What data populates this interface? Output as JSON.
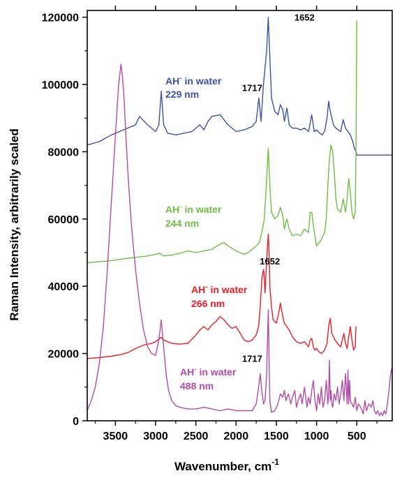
{
  "chart_data": {
    "type": "line",
    "xlabel": "Wavenumber, cm",
    "xlabel_superscript": "-1",
    "ylabel": "Raman Intensity, arbitrarily  scaled",
    "xlim": [
      3850,
      60
    ],
    "ylim": [
      0,
      122000
    ],
    "x_reversed": true,
    "x_ticks": [
      "3500",
      "3000",
      "2500",
      "2000",
      "1500",
      "1000",
      "500"
    ],
    "x_tick_values": [
      3500,
      3000,
      2500,
      2000,
      1500,
      1000,
      500
    ],
    "y_ticks": [
      "0",
      "20000",
      "40000",
      "60000",
      "80000",
      "100000",
      "120000"
    ],
    "y_tick_values": [
      0,
      20000,
      40000,
      60000,
      80000,
      100000,
      120000
    ],
    "series": [
      {
        "color": "#3953a4",
        "label_line1": "AH",
        "label_sup": "-",
        "label_rest": " in water",
        "label_line2": "229 nm",
        "x": [
          3850,
          3700,
          3550,
          3450,
          3350,
          3250,
          3200,
          3100,
          3000,
          2960,
          2930,
          2900,
          2850,
          2750,
          2650,
          2550,
          2450,
          2400,
          2350,
          2300,
          2200,
          2100,
          2000,
          1900,
          1800,
          1750,
          1717,
          1690,
          1660,
          1620,
          1600,
          1580,
          1560,
          1520,
          1480,
          1450,
          1420,
          1400,
          1370,
          1340,
          1300,
          1250,
          1200,
          1150,
          1100,
          1060,
          1030,
          1000,
          960,
          930,
          900,
          870,
          850,
          830,
          810,
          790,
          760,
          730,
          700,
          670,
          640,
          610,
          580,
          550,
          530,
          510,
          500,
          450,
          300,
          150,
          60
        ],
        "y": [
          82000,
          83000,
          85000,
          86000,
          87000,
          88000,
          90500,
          88000,
          86000,
          88000,
          98000,
          88000,
          85500,
          85000,
          85500,
          86000,
          88000,
          86500,
          89000,
          90500,
          91000,
          88000,
          86000,
          86500,
          87500,
          89000,
          96000,
          89000,
          100000,
          110000,
          120000,
          108000,
          96000,
          92000,
          91000,
          94000,
          92500,
          89000,
          93000,
          88000,
          87000,
          87000,
          86500,
          87000,
          86000,
          91000,
          86000,
          86500,
          85500,
          85000,
          86000,
          90000,
          95000,
          92000,
          90000,
          88000,
          87000,
          86500,
          86000,
          89500,
          87000,
          86000,
          85000,
          83000,
          81000,
          80000,
          79000,
          79000,
          79000,
          79000,
          79000
        ]
      },
      {
        "color": "#6ebe44",
        "label_line1": "AH",
        "label_sup": "-",
        "label_rest": " in water",
        "label_line2": "244 nm",
        "x": [
          3850,
          3700,
          3550,
          3450,
          3350,
          3250,
          3100,
          3000,
          2950,
          2900,
          2800,
          2700,
          2600,
          2500,
          2400,
          2300,
          2200,
          2150,
          2100,
          2000,
          1900,
          1850,
          1800,
          1750,
          1710,
          1680,
          1650,
          1620,
          1600,
          1580,
          1560,
          1520,
          1480,
          1450,
          1420,
          1400,
          1370,
          1340,
          1300,
          1250,
          1200,
          1150,
          1100,
          1080,
          1060,
          1040,
          1020,
          1000,
          950,
          900,
          880,
          860,
          840,
          820,
          800,
          780,
          760,
          740,
          700,
          670,
          640,
          620,
          600,
          580,
          560,
          540,
          520,
          510,
          505,
          500
        ],
        "y": [
          47000,
          47300,
          47600,
          48000,
          48300,
          48600,
          49000,
          49500,
          49800,
          49000,
          49300,
          49800,
          50500,
          50000,
          50500,
          51000,
          52500,
          53000,
          52000,
          50500,
          49500,
          50000,
          51000,
          52000,
          53000,
          56000,
          60000,
          72000,
          81000,
          70000,
          62000,
          60000,
          61000,
          63500,
          61000,
          57000,
          60000,
          57000,
          55000,
          55500,
          55000,
          57000,
          56000,
          62000,
          62000,
          58000,
          55000,
          52000,
          53500,
          56000,
          60000,
          70000,
          78000,
          82000,
          80000,
          74000,
          66000,
          63000,
          62000,
          66000,
          62000,
          66000,
          72000,
          68000,
          62000,
          60000,
          62000,
          80000,
          100000,
          119000
        ]
      },
      {
        "color": "#ed1c24",
        "label_line1": "AH",
        "label_sup": "-",
        "label_rest": " in water",
        "label_line2": "266 nm",
        "x": [
          3850,
          3700,
          3550,
          3450,
          3350,
          3250,
          3150,
          3050,
          3000,
          2950,
          2930,
          2900,
          2850,
          2800,
          2700,
          2600,
          2500,
          2450,
          2400,
          2350,
          2300,
          2250,
          2200,
          2150,
          2100,
          2050,
          2000,
          1950,
          1900,
          1850,
          1800,
          1750,
          1720,
          1700,
          1680,
          1660,
          1652,
          1640,
          1620,
          1600,
          1590,
          1580,
          1560,
          1540,
          1500,
          1470,
          1450,
          1420,
          1400,
          1370,
          1340,
          1300,
          1250,
          1200,
          1150,
          1100,
          1080,
          1060,
          1040,
          1020,
          1000,
          970,
          940,
          900,
          870,
          850,
          830,
          810,
          790,
          770,
          740,
          720,
          700,
          680,
          660,
          640,
          620,
          600,
          580,
          560,
          540,
          520,
          510
        ],
        "y": [
          18500,
          18800,
          19200,
          19600,
          20200,
          21500,
          22500,
          23000,
          23500,
          24500,
          24800,
          24000,
          23500,
          23000,
          22800,
          23000,
          25500,
          27000,
          28000,
          27000,
          28500,
          29500,
          31000,
          30000,
          28500,
          27500,
          28000,
          26000,
          24000,
          23500,
          24000,
          25500,
          28000,
          34000,
          42000,
          45000,
          43500,
          38000,
          48000,
          55500,
          50000,
          40000,
          34000,
          30000,
          29000,
          32000,
          35000,
          31000,
          29000,
          28000,
          27000,
          25000,
          23500,
          23000,
          23500,
          22000,
          24000,
          24500,
          22000,
          21000,
          21500,
          20500,
          20000,
          21000,
          23000,
          28000,
          30500,
          26000,
          25000,
          24000,
          23000,
          22500,
          22000,
          24000,
          26000,
          23000,
          21500,
          25000,
          28000,
          24000,
          21000,
          22000,
          28000
        ]
      },
      {
        "color": "#b24aa8",
        "label_line1": "AH",
        "label_sup": "-",
        "label_rest": " in water",
        "label_line2": "488 nm",
        "x": [
          3850,
          3800,
          3750,
          3700,
          3650,
          3600,
          3550,
          3500,
          3460,
          3430,
          3410,
          3390,
          3370,
          3340,
          3300,
          3250,
          3200,
          3150,
          3100,
          3050,
          3000,
          2960,
          2930,
          2900,
          2870,
          2840,
          2800,
          2750,
          2700,
          2600,
          2500,
          2400,
          2300,
          2200,
          2100,
          2000,
          1900,
          1800,
          1750,
          1720,
          1700,
          1680,
          1660,
          1640,
          1620,
          1600,
          1590,
          1580,
          1560,
          1520,
          1480,
          1450,
          1420,
          1400,
          1380,
          1350,
          1320,
          1300,
          1270,
          1250,
          1230,
          1200,
          1180,
          1150,
          1120,
          1100,
          1080,
          1060,
          1040,
          1020,
          1000,
          980,
          960,
          940,
          920,
          900,
          880,
          860,
          850,
          840,
          830,
          820,
          810,
          800,
          780,
          760,
          740,
          720,
          700,
          680,
          660,
          640,
          620,
          610,
          600,
          590,
          580,
          560,
          540,
          520,
          500,
          480,
          450,
          420,
          400,
          380,
          350,
          320,
          300,
          280,
          260,
          240,
          220,
          200,
          180,
          160,
          140,
          120,
          100,
          80,
          60
        ],
        "y": [
          3000,
          6000,
          10000,
          17000,
          28000,
          45000,
          65000,
          85000,
          100000,
          106000,
          102000,
          95000,
          85000,
          72000,
          58000,
          45000,
          35000,
          27000,
          22000,
          20000,
          19500,
          24000,
          30000,
          22000,
          14000,
          9000,
          6000,
          4500,
          4000,
          3500,
          3500,
          4000,
          3500,
          3000,
          3500,
          3000,
          3000,
          3000,
          5000,
          10000,
          14000,
          9000,
          5000,
          6000,
          14000,
          33000,
          18000,
          6000,
          2500,
          3000,
          5000,
          8000,
          7000,
          9000,
          6000,
          8000,
          5000,
          7000,
          9000,
          4000,
          6000,
          8000,
          5000,
          10000,
          4000,
          7000,
          5000,
          9000,
          12000,
          6000,
          3000,
          8000,
          5000,
          10000,
          4000,
          6000,
          12000,
          5000,
          8000,
          18000,
          6000,
          9000,
          5000,
          4000,
          8000,
          6000,
          10000,
          5000,
          8000,
          12000,
          6000,
          14000,
          5000,
          15000,
          5000,
          12000,
          6000,
          5000,
          4000,
          7000,
          3000,
          5000,
          4000,
          2000,
          6000,
          3000,
          5000,
          4000,
          6000,
          3000,
          2000,
          3000,
          1500,
          2500,
          1500,
          3000,
          2000,
          5000,
          9000,
          14000,
          16000
        ]
      }
    ],
    "annotations": [
      {
        "text": "1652",
        "x": 1150,
        "y": 119000
      },
      {
        "text": "1717",
        "x": 1800,
        "y": 98000
      },
      {
        "text": "1652",
        "x": 1580,
        "y": 46500
      },
      {
        "text": "1717",
        "x": 1800,
        "y": 17500
      }
    ]
  }
}
